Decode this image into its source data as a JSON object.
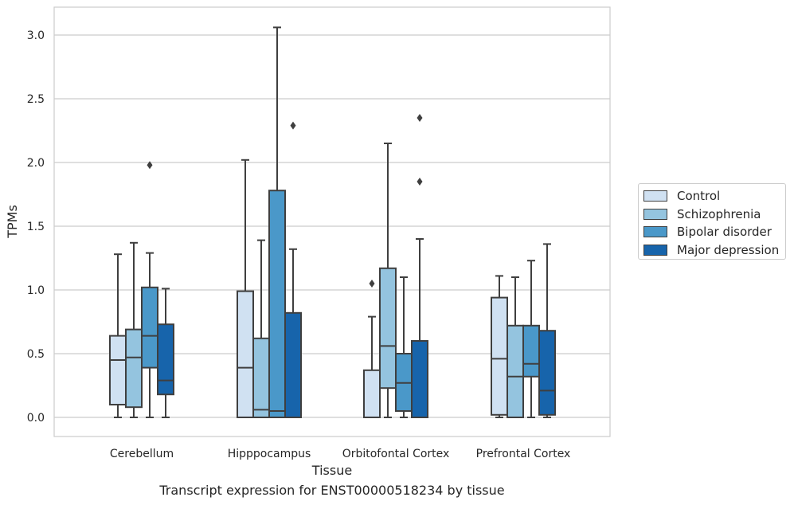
{
  "chart_data": {
    "type": "box",
    "xlabel": "Tissue",
    "ylabel": "TPMs",
    "caption": "Transcript expression for ENST00000518234 by tissue",
    "ylim": [
      -0.15,
      3.22
    ],
    "yticks": [
      0.0,
      0.5,
      1.0,
      1.5,
      2.0,
      2.5,
      3.0
    ],
    "ytick_labels": [
      "0.0",
      "0.5",
      "1.0",
      "1.5",
      "2.0",
      "2.5",
      "3.0"
    ],
    "grid": "horizontal",
    "legend_position": "right",
    "categories": [
      "Cerebellum",
      "Hipppocampus",
      "Orbitofontal Cortex",
      "Prefrontal Cortex"
    ],
    "series": [
      {
        "name": "Control",
        "color": "#d0e1f2",
        "boxes": [
          {
            "whislo": 0.0,
            "q1": 0.1,
            "med": 0.45,
            "q3": 0.64,
            "whishi": 1.28,
            "fliers": []
          },
          {
            "whislo": 0.0,
            "q1": 0.0,
            "med": 0.39,
            "q3": 0.99,
            "whishi": 2.02,
            "fliers": []
          },
          {
            "whislo": 0.0,
            "q1": 0.0,
            "med": 0.0,
            "q3": 0.37,
            "whishi": 0.79,
            "fliers": [
              1.05
            ]
          },
          {
            "whislo": 0.0,
            "q1": 0.02,
            "med": 0.46,
            "q3": 0.94,
            "whishi": 1.11,
            "fliers": []
          }
        ]
      },
      {
        "name": "Schizophrenia",
        "color": "#94c4df",
        "boxes": [
          {
            "whislo": 0.0,
            "q1": 0.08,
            "med": 0.47,
            "q3": 0.69,
            "whishi": 1.37,
            "fliers": []
          },
          {
            "whislo": 0.0,
            "q1": 0.0,
            "med": 0.06,
            "q3": 0.62,
            "whishi": 1.39,
            "fliers": []
          },
          {
            "whislo": 0.0,
            "q1": 0.23,
            "med": 0.56,
            "q3": 1.17,
            "whishi": 2.15,
            "fliers": []
          },
          {
            "whislo": 0.0,
            "q1": 0.0,
            "med": 0.32,
            "q3": 0.72,
            "whishi": 1.1,
            "fliers": []
          }
        ]
      },
      {
        "name": "Bipolar disorder",
        "color": "#4a98c9",
        "boxes": [
          {
            "whislo": 0.0,
            "q1": 0.39,
            "med": 0.64,
            "q3": 1.02,
            "whishi": 1.29,
            "fliers": [
              1.98
            ]
          },
          {
            "whislo": 0.0,
            "q1": 0.0,
            "med": 0.05,
            "q3": 1.78,
            "whishi": 3.06,
            "fliers": []
          },
          {
            "whislo": 0.0,
            "q1": 0.05,
            "med": 0.27,
            "q3": 0.5,
            "whishi": 1.1,
            "fliers": []
          },
          {
            "whislo": 0.0,
            "q1": 0.32,
            "med": 0.42,
            "q3": 0.72,
            "whishi": 1.23,
            "fliers": []
          }
        ]
      },
      {
        "name": "Major depression",
        "color": "#1764ab",
        "boxes": [
          {
            "whislo": 0.0,
            "q1": 0.18,
            "med": 0.29,
            "q3": 0.73,
            "whishi": 1.01,
            "fliers": []
          },
          {
            "whislo": 0.0,
            "q1": 0.0,
            "med": 0.0,
            "q3": 0.82,
            "whishi": 1.32,
            "fliers": [
              2.29
            ]
          },
          {
            "whislo": 0.0,
            "q1": 0.0,
            "med": 0.0,
            "q3": 0.6,
            "whishi": 1.4,
            "fliers": [
              1.85,
              2.35
            ]
          },
          {
            "whislo": 0.0,
            "q1": 0.02,
            "med": 0.21,
            "q3": 0.68,
            "whishi": 1.36,
            "fliers": []
          }
        ]
      }
    ]
  }
}
